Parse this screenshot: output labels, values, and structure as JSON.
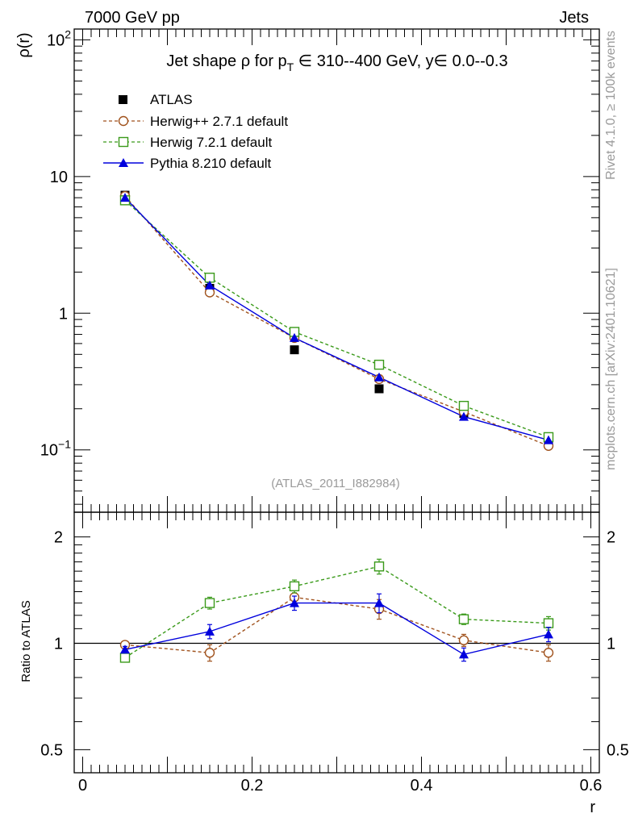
{
  "header": {
    "left": "7000 GeV pp",
    "right": "Jets"
  },
  "side_labels": {
    "rivet": "Rivet 4.1.0, ≥ 100k events",
    "mcplots": "mcplots.cern.ch [arXiv:2401.10621]"
  },
  "chart_data": [
    {
      "type": "scatter",
      "panel": "main",
      "title_parts": {
        "prefix": "Jet shape ",
        "rho": "ρ",
        "for": " for p",
        "sub": "T",
        "range": " ∈ 310--400 GeV, y∈ 0.0--0.3"
      },
      "ylabel": "ρ(r)",
      "yscale": "log",
      "ylim": [
        0.035,
        120
      ],
      "xlim": [
        -0.01,
        0.61
      ],
      "y_ticks": [
        {
          "value": 100,
          "base": "10",
          "exp": "2"
        },
        {
          "value": 10,
          "base": "10",
          "exp": ""
        },
        {
          "value": 1,
          "base": "1",
          "exp": ""
        },
        {
          "value": 0.1,
          "base": "10",
          "exp": "−1"
        }
      ],
      "watermark": "(ATLAS_2011_I882984)",
      "legend_position": "top-left",
      "x": [
        0.05,
        0.15,
        0.25,
        0.35,
        0.45,
        0.55
      ],
      "series": [
        {
          "name": "ATLAS",
          "color": "#000000",
          "marker": "square-filled",
          "line": "none",
          "values": [
            7.3,
            1.52,
            0.54,
            0.28,
            0.185,
            0.112
          ]
        },
        {
          "name": "Herwig++ 2.7.1 default",
          "color": "#a0521d",
          "marker": "circle-open",
          "line": "dashed",
          "values": [
            7.2,
            1.42,
            0.66,
            0.33,
            0.19,
            0.107
          ]
        },
        {
          "name": "Herwig 7.2.1 default",
          "color": "#3a9a1a",
          "marker": "square-open",
          "line": "dashed",
          "values": [
            6.7,
            1.82,
            0.73,
            0.42,
            0.21,
            0.124
          ]
        },
        {
          "name": "Pythia 8.210 default",
          "color": "#0000dd",
          "marker": "triangle-filled",
          "line": "solid",
          "values": [
            7.0,
            1.6,
            0.66,
            0.34,
            0.175,
            0.118
          ]
        }
      ]
    },
    {
      "type": "line",
      "panel": "ratio",
      "ylabel": "Ratio to ATLAS",
      "xlabel": "r",
      "yscale": "log",
      "ylim": [
        0.43,
        2.35
      ],
      "xlim": [
        -0.01,
        0.61
      ],
      "y_ticks": [
        {
          "value": 2,
          "label": "2"
        },
        {
          "value": 1,
          "label": "1"
        },
        {
          "value": 0.5,
          "label": "0.5"
        }
      ],
      "x_ticks": [
        {
          "value": 0,
          "label": "0"
        },
        {
          "value": 0.2,
          "label": "0.2"
        },
        {
          "value": 0.4,
          "label": "0.4"
        },
        {
          "value": 0.6,
          "label": "0.6"
        }
      ],
      "reference_line": 1,
      "x": [
        0.05,
        0.15,
        0.25,
        0.35,
        0.45,
        0.55
      ],
      "series": [
        {
          "name": "Herwig++ 2.7.1 default",
          "color": "#a0521d",
          "marker": "circle-open",
          "line": "dashed",
          "values": [
            0.99,
            0.94,
            1.35,
            1.25,
            1.02,
            0.94
          ],
          "errors": [
            0.02,
            0.05,
            0.06,
            0.08,
            0.04,
            0.05
          ]
        },
        {
          "name": "Herwig 7.2.1 default",
          "color": "#3a9a1a",
          "marker": "square-open",
          "line": "dashed",
          "values": [
            0.91,
            1.3,
            1.45,
            1.65,
            1.17,
            1.14
          ],
          "errors": [
            0.02,
            0.05,
            0.06,
            0.08,
            0.04,
            0.05
          ]
        },
        {
          "name": "Pythia 8.210 default",
          "color": "#0000dd",
          "marker": "triangle-filled",
          "line": "solid",
          "values": [
            0.96,
            1.08,
            1.3,
            1.3,
            0.93,
            1.06
          ],
          "errors": [
            0.02,
            0.05,
            0.06,
            0.08,
            0.04,
            0.05
          ]
        }
      ]
    }
  ]
}
